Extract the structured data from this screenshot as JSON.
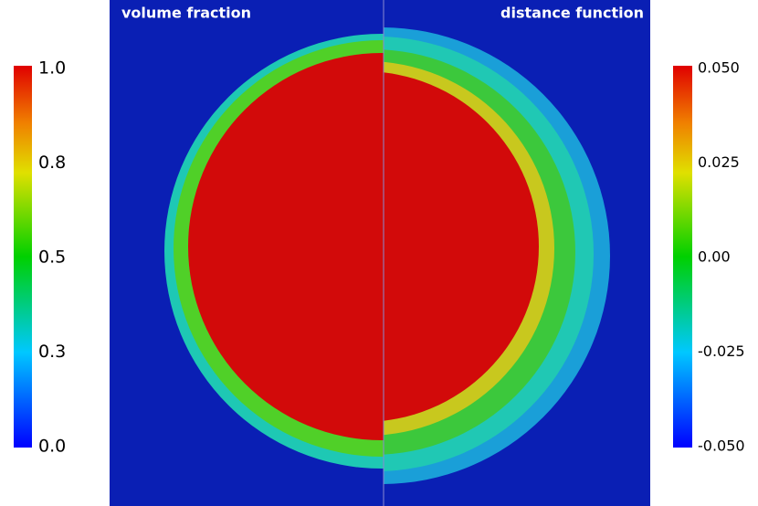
{
  "panels": {
    "left_title": "volume fraction",
    "right_title": "distance function"
  },
  "left_colorbar": {
    "ticks": [
      "1.0",
      "0.8",
      "0.5",
      "0.3",
      "0.0"
    ]
  },
  "right_colorbar": {
    "ticks": [
      "0.050",
      "0.025",
      "0.00",
      "-0.025",
      "-0.050"
    ]
  }
}
